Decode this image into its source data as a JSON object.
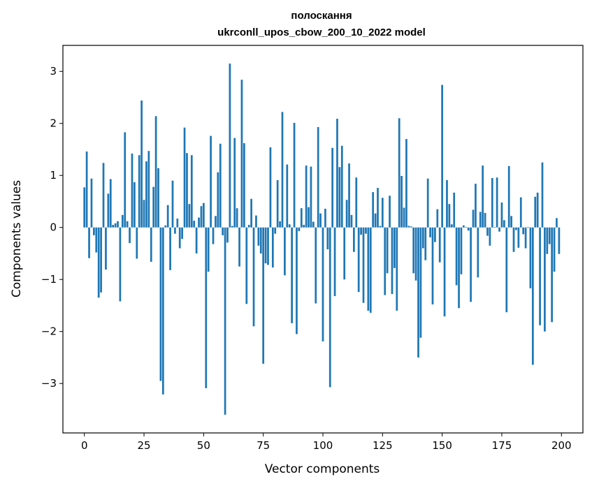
{
  "chart_data": {
    "type": "bar",
    "title_line1": "полоскання",
    "title_line2": "ukrconll_upos_cbow_200_10_2022 model",
    "xlabel": "Vector components",
    "ylabel": "Components values",
    "xlim": [
      -9,
      209
    ],
    "ylim": [
      -3.95,
      3.5
    ],
    "xticks": [
      0,
      25,
      50,
      75,
      100,
      125,
      150,
      175,
      200
    ],
    "xtick_labels": [
      "0",
      "25",
      "50",
      "75",
      "100",
      "125",
      "150",
      "175",
      "200"
    ],
    "yticks": [
      -3,
      -2,
      -1,
      0,
      1,
      2,
      3
    ],
    "ytick_labels": [
      "−3",
      "−2",
      "−1",
      "0",
      "1",
      "2",
      "3"
    ],
    "bar_color": "#1f77b4",
    "x": [
      0,
      1,
      2,
      3,
      4,
      5,
      6,
      7,
      8,
      9,
      10,
      11,
      12,
      13,
      14,
      15,
      16,
      17,
      18,
      19,
      20,
      21,
      22,
      23,
      24,
      25,
      26,
      27,
      28,
      29,
      30,
      31,
      32,
      33,
      34,
      35,
      36,
      37,
      38,
      39,
      40,
      41,
      42,
      43,
      44,
      45,
      46,
      47,
      48,
      49,
      50,
      51,
      52,
      53,
      54,
      55,
      56,
      57,
      58,
      59,
      60,
      61,
      62,
      63,
      64,
      65,
      66,
      67,
      68,
      69,
      70,
      71,
      72,
      73,
      74,
      75,
      76,
      77,
      78,
      79,
      80,
      81,
      82,
      83,
      84,
      85,
      86,
      87,
      88,
      89,
      90,
      91,
      92,
      93,
      94,
      95,
      96,
      97,
      98,
      99,
      100,
      101,
      102,
      103,
      104,
      105,
      106,
      107,
      108,
      109,
      110,
      111,
      112,
      113,
      114,
      115,
      116,
      117,
      118,
      119,
      120,
      121,
      122,
      123,
      124,
      125,
      126,
      127,
      128,
      129,
      130,
      131,
      132,
      133,
      134,
      135,
      136,
      137,
      138,
      139,
      140,
      141,
      142,
      143,
      144,
      145,
      146,
      147,
      148,
      149,
      150,
      151,
      152,
      153,
      154,
      155,
      156,
      157,
      158,
      159,
      160,
      161,
      162,
      163,
      164,
      165,
      166,
      167,
      168,
      169,
      170,
      171,
      172,
      173,
      174,
      175,
      176,
      177,
      178,
      179,
      180,
      181,
      182,
      183,
      184,
      185,
      186,
      187,
      188,
      189,
      190,
      191,
      192,
      193,
      194,
      195,
      196,
      197,
      198,
      199
    ],
    "values": [
      0.77,
      1.46,
      -0.59,
      0.94,
      -0.15,
      -0.48,
      -1.35,
      -1.25,
      1.24,
      -0.81,
      0.65,
      0.93,
      0.05,
      0.08,
      0.12,
      -1.42,
      0.24,
      1.83,
      0.12,
      -0.3,
      1.42,
      0.87,
      -0.6,
      1.39,
      2.44,
      0.53,
      1.27,
      1.47,
      -0.66,
      0.78,
      2.14,
      1.14,
      -2.95,
      -3.21,
      0.04,
      0.43,
      -0.82,
      0.9,
      -0.12,
      0.17,
      -0.4,
      -0.22,
      1.92,
      1.43,
      0.45,
      1.39,
      0.13,
      -0.5,
      0.19,
      0.41,
      0.47,
      -3.09,
      -0.85,
      1.76,
      -0.32,
      0.22,
      1.06,
      1.61,
      -0.15,
      -3.6,
      -0.29,
      3.15,
      0.03,
      1.72,
      0.37,
      -0.75,
      2.84,
      1.62,
      -1.47,
      0.05,
      0.55,
      -1.9,
      0.23,
      -0.35,
      -0.5,
      -2.62,
      -0.69,
      -0.72,
      1.54,
      -0.77,
      -0.12,
      0.91,
      0.12,
      2.22,
      -0.92,
      1.21,
      0.06,
      -1.84,
      2.01,
      -2.05,
      -0.07,
      0.37,
      0.05,
      1.19,
      0.39,
      1.17,
      0.11,
      -1.46,
      1.93,
      0.27,
      -2.19,
      0.36,
      -0.42,
      -3.07,
      1.53,
      -1.32,
      2.09,
      1.16,
      1.57,
      -1.0,
      0.53,
      1.23,
      0.24,
      -0.47,
      0.96,
      -1.24,
      -0.14,
      -1.45,
      -0.12,
      -1.6,
      -1.64,
      0.68,
      0.27,
      0.76,
      0.03,
      0.57,
      -1.3,
      -0.88,
      0.61,
      -1.28,
      -0.78,
      -1.6,
      2.1,
      0.99,
      0.38,
      1.7,
      0.03,
      0.02,
      -0.88,
      -1.02,
      -2.5,
      -2.12,
      -0.4,
      -0.63,
      0.94,
      -0.19,
      -1.48,
      -0.28,
      0.35,
      -0.67,
      2.74,
      -1.71,
      0.91,
      0.45,
      0.06,
      0.67,
      -1.11,
      -1.55,
      -0.9,
      0.04,
      0.01,
      -0.06,
      -1.43,
      0.34,
      0.84,
      -0.96,
      0.3,
      1.19,
      0.28,
      -0.16,
      -0.35,
      0.95,
      0.01,
      0.96,
      -0.08,
      0.48,
      0.14,
      -1.63,
      1.18,
      0.22,
      -0.47,
      -0.05,
      -0.39,
      0.58,
      -0.13,
      -0.4,
      0.01,
      -1.17,
      -2.64,
      0.59,
      0.67,
      -1.88,
      1.25,
      -2.0,
      -0.51,
      -0.32,
      -1.82,
      -0.85,
      0.18,
      -0.51
    ]
  }
}
